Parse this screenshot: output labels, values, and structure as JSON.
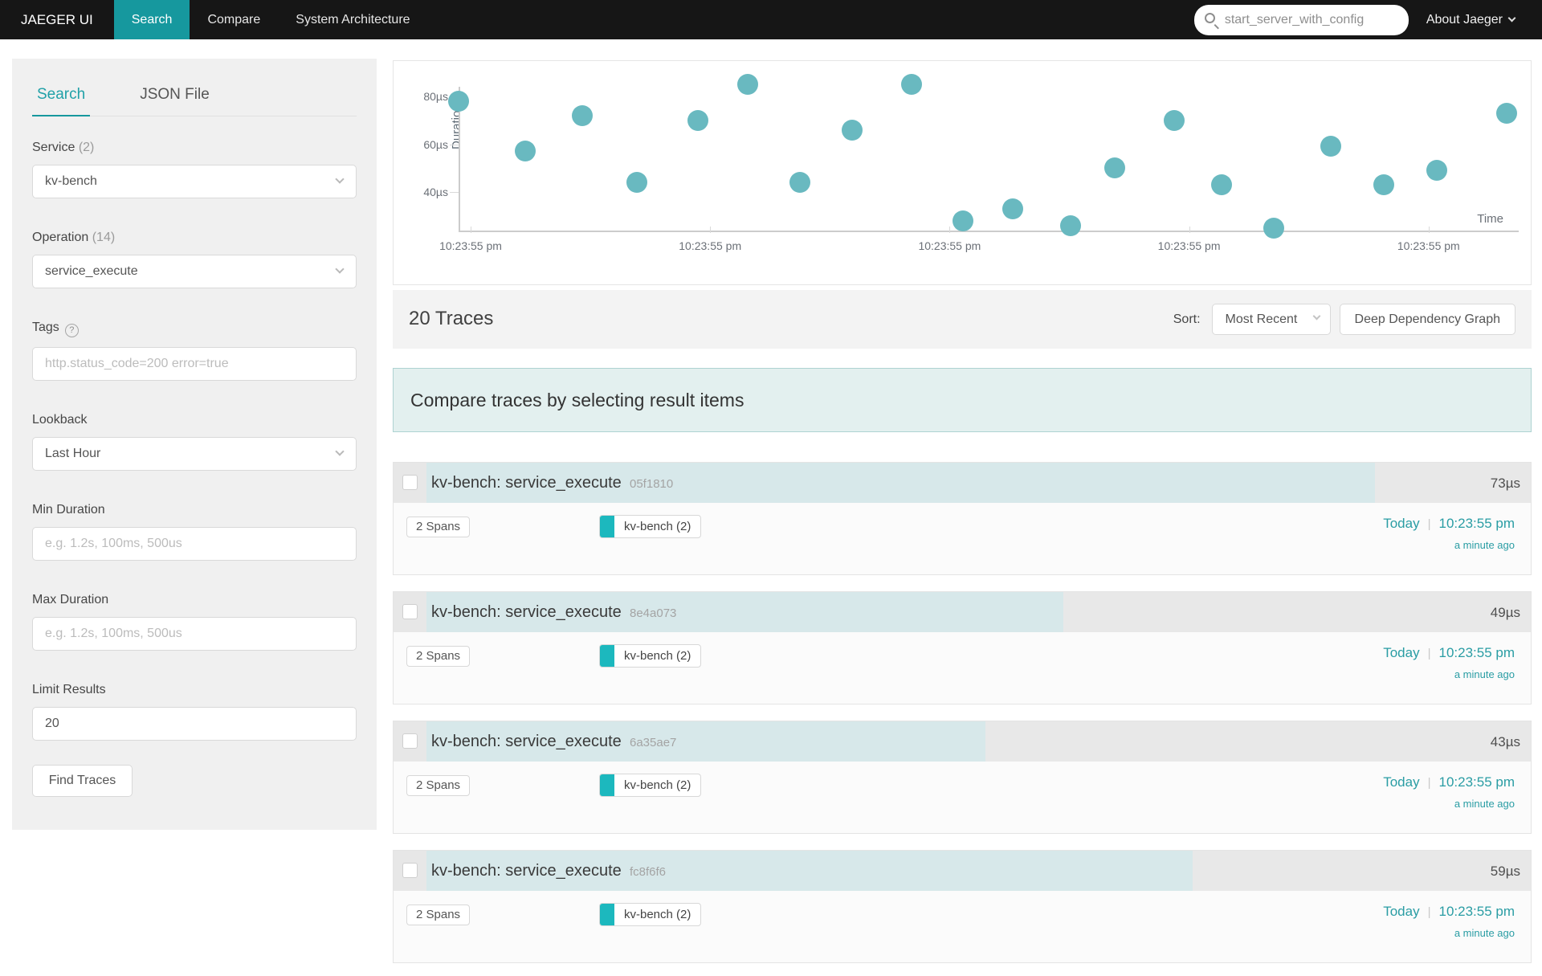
{
  "navbar": {
    "brand": "JAEGER UI",
    "tabs": [
      {
        "label": "Search",
        "active": true
      },
      {
        "label": "Compare",
        "active": false
      },
      {
        "label": "System Architecture",
        "active": false
      }
    ],
    "search_value": "start_server_with_config",
    "about_label": "About Jaeger"
  },
  "sidebar": {
    "tabs": [
      {
        "label": "Search",
        "active": true
      },
      {
        "label": "JSON File",
        "active": false
      }
    ],
    "service": {
      "label": "Service",
      "count": "(2)",
      "value": "kv-bench"
    },
    "operation": {
      "label": "Operation",
      "count": "(14)",
      "value": "service_execute"
    },
    "tags": {
      "label": "Tags",
      "placeholder": "http.status_code=200 error=true"
    },
    "lookback": {
      "label": "Lookback",
      "value": "Last Hour"
    },
    "min_duration": {
      "label": "Min Duration",
      "placeholder": "e.g. 1.2s, 100ms, 500us"
    },
    "max_duration": {
      "label": "Max Duration",
      "placeholder": "e.g. 1.2s, 100ms, 500us"
    },
    "limit": {
      "label": "Limit Results",
      "value": "20"
    },
    "find_button": "Find Traces"
  },
  "chart_data": {
    "type": "scatter",
    "ylabel": "Duration",
    "xlabel": "Time",
    "y_ticks": [
      {
        "label": "80µs",
        "us": 80
      },
      {
        "label": "60µs",
        "us": 60
      },
      {
        "label": "40µs",
        "us": 40
      }
    ],
    "x_ticks": [
      "10:23:55 pm",
      "10:23:55 pm",
      "10:23:55 pm",
      "10:23:55 pm",
      "10:23:55 pm"
    ],
    "y_axis_range_us": [
      25,
      90
    ],
    "point_color": "#69b9c0",
    "points": [
      {
        "t": 0.0,
        "us": 78
      },
      {
        "t": 0.063,
        "us": 57
      },
      {
        "t": 0.117,
        "us": 72
      },
      {
        "t": 0.168,
        "us": 44
      },
      {
        "t": 0.226,
        "us": 70
      },
      {
        "t": 0.273,
        "us": 85
      },
      {
        "t": 0.322,
        "us": 44
      },
      {
        "t": 0.371,
        "us": 66
      },
      {
        "t": 0.427,
        "us": 85
      },
      {
        "t": 0.476,
        "us": 28
      },
      {
        "t": 0.523,
        "us": 33
      },
      {
        "t": 0.577,
        "us": 26
      },
      {
        "t": 0.619,
        "us": 50
      },
      {
        "t": 0.675,
        "us": 70
      },
      {
        "t": 0.72,
        "us": 43
      },
      {
        "t": 0.769,
        "us": 25
      },
      {
        "t": 0.823,
        "us": 59
      },
      {
        "t": 0.873,
        "us": 43
      },
      {
        "t": 0.923,
        "us": 49
      },
      {
        "t": 0.989,
        "us": 73
      }
    ]
  },
  "results": {
    "count_label": "20 Traces",
    "sort_label": "Sort:",
    "sort_value": "Most Recent",
    "ddg_button": "Deep Dependency Graph",
    "banner": "Compare traces by selecting result items",
    "max_scale_us": 85,
    "traces": [
      {
        "title": "kv-bench: service_execute",
        "id": "05f1810",
        "duration": "73µs",
        "duration_us": 73,
        "spans": "2 Spans",
        "tag": "kv-bench (2)",
        "day": "Today",
        "time": "10:23:55 pm",
        "ago": "a minute ago"
      },
      {
        "title": "kv-bench: service_execute",
        "id": "8e4a073",
        "duration": "49µs",
        "duration_us": 49,
        "spans": "2 Spans",
        "tag": "kv-bench (2)",
        "day": "Today",
        "time": "10:23:55 pm",
        "ago": "a minute ago"
      },
      {
        "title": "kv-bench: service_execute",
        "id": "6a35ae7",
        "duration": "43µs",
        "duration_us": 43,
        "spans": "2 Spans",
        "tag": "kv-bench (2)",
        "day": "Today",
        "time": "10:23:55 pm",
        "ago": "a minute ago"
      },
      {
        "title": "kv-bench: service_execute",
        "id": "fc8f6f6",
        "duration": "59µs",
        "duration_us": 59,
        "spans": "2 Spans",
        "tag": "kv-bench (2)",
        "day": "Today",
        "time": "10:23:55 pm",
        "ago": "a minute ago"
      }
    ]
  }
}
